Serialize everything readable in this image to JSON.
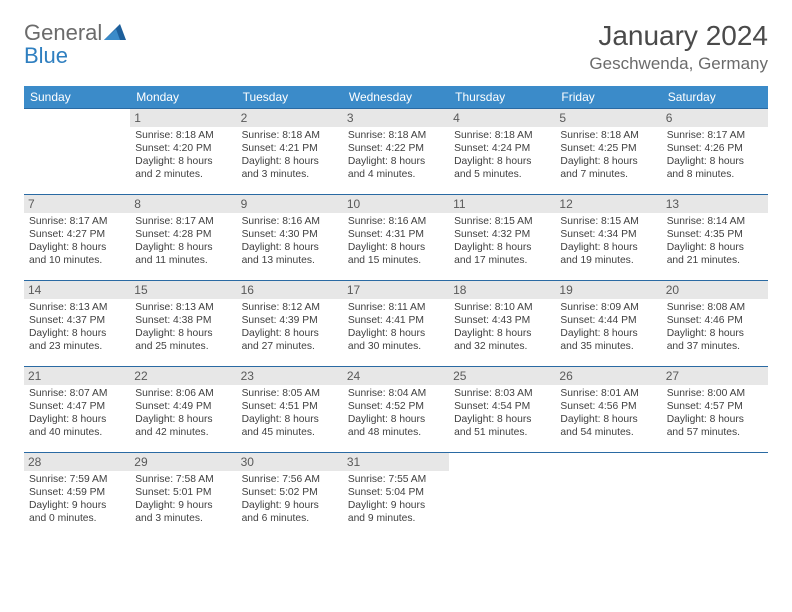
{
  "logo": {
    "general": "General",
    "blue": "Blue"
  },
  "title": "January 2024",
  "location": "Geschwenda, Germany",
  "colors": {
    "header_bg": "#3b8bc9",
    "header_text": "#ffffff",
    "rule": "#2a6aa3",
    "daynum_bg": "#e7e7e7",
    "daynum_text": "#5a5a5a",
    "body_text": "#404040",
    "title_text": "#4a4a4a",
    "location_text": "#6b6b6b",
    "logo_gray": "#6b6b6b",
    "logo_blue": "#2f7fc0"
  },
  "day_names": [
    "Sunday",
    "Monday",
    "Tuesday",
    "Wednesday",
    "Thursday",
    "Friday",
    "Saturday"
  ],
  "weeks": [
    [
      null,
      {
        "n": "1",
        "sr": "Sunrise: 8:18 AM",
        "ss": "Sunset: 4:20 PM",
        "d1": "Daylight: 8 hours",
        "d2": "and 2 minutes."
      },
      {
        "n": "2",
        "sr": "Sunrise: 8:18 AM",
        "ss": "Sunset: 4:21 PM",
        "d1": "Daylight: 8 hours",
        "d2": "and 3 minutes."
      },
      {
        "n": "3",
        "sr": "Sunrise: 8:18 AM",
        "ss": "Sunset: 4:22 PM",
        "d1": "Daylight: 8 hours",
        "d2": "and 4 minutes."
      },
      {
        "n": "4",
        "sr": "Sunrise: 8:18 AM",
        "ss": "Sunset: 4:24 PM",
        "d1": "Daylight: 8 hours",
        "d2": "and 5 minutes."
      },
      {
        "n": "5",
        "sr": "Sunrise: 8:18 AM",
        "ss": "Sunset: 4:25 PM",
        "d1": "Daylight: 8 hours",
        "d2": "and 7 minutes."
      },
      {
        "n": "6",
        "sr": "Sunrise: 8:17 AM",
        "ss": "Sunset: 4:26 PM",
        "d1": "Daylight: 8 hours",
        "d2": "and 8 minutes."
      }
    ],
    [
      {
        "n": "7",
        "sr": "Sunrise: 8:17 AM",
        "ss": "Sunset: 4:27 PM",
        "d1": "Daylight: 8 hours",
        "d2": "and 10 minutes."
      },
      {
        "n": "8",
        "sr": "Sunrise: 8:17 AM",
        "ss": "Sunset: 4:28 PM",
        "d1": "Daylight: 8 hours",
        "d2": "and 11 minutes."
      },
      {
        "n": "9",
        "sr": "Sunrise: 8:16 AM",
        "ss": "Sunset: 4:30 PM",
        "d1": "Daylight: 8 hours",
        "d2": "and 13 minutes."
      },
      {
        "n": "10",
        "sr": "Sunrise: 8:16 AM",
        "ss": "Sunset: 4:31 PM",
        "d1": "Daylight: 8 hours",
        "d2": "and 15 minutes."
      },
      {
        "n": "11",
        "sr": "Sunrise: 8:15 AM",
        "ss": "Sunset: 4:32 PM",
        "d1": "Daylight: 8 hours",
        "d2": "and 17 minutes."
      },
      {
        "n": "12",
        "sr": "Sunrise: 8:15 AM",
        "ss": "Sunset: 4:34 PM",
        "d1": "Daylight: 8 hours",
        "d2": "and 19 minutes."
      },
      {
        "n": "13",
        "sr": "Sunrise: 8:14 AM",
        "ss": "Sunset: 4:35 PM",
        "d1": "Daylight: 8 hours",
        "d2": "and 21 minutes."
      }
    ],
    [
      {
        "n": "14",
        "sr": "Sunrise: 8:13 AM",
        "ss": "Sunset: 4:37 PM",
        "d1": "Daylight: 8 hours",
        "d2": "and 23 minutes."
      },
      {
        "n": "15",
        "sr": "Sunrise: 8:13 AM",
        "ss": "Sunset: 4:38 PM",
        "d1": "Daylight: 8 hours",
        "d2": "and 25 minutes."
      },
      {
        "n": "16",
        "sr": "Sunrise: 8:12 AM",
        "ss": "Sunset: 4:39 PM",
        "d1": "Daylight: 8 hours",
        "d2": "and 27 minutes."
      },
      {
        "n": "17",
        "sr": "Sunrise: 8:11 AM",
        "ss": "Sunset: 4:41 PM",
        "d1": "Daylight: 8 hours",
        "d2": "and 30 minutes."
      },
      {
        "n": "18",
        "sr": "Sunrise: 8:10 AM",
        "ss": "Sunset: 4:43 PM",
        "d1": "Daylight: 8 hours",
        "d2": "and 32 minutes."
      },
      {
        "n": "19",
        "sr": "Sunrise: 8:09 AM",
        "ss": "Sunset: 4:44 PM",
        "d1": "Daylight: 8 hours",
        "d2": "and 35 minutes."
      },
      {
        "n": "20",
        "sr": "Sunrise: 8:08 AM",
        "ss": "Sunset: 4:46 PM",
        "d1": "Daylight: 8 hours",
        "d2": "and 37 minutes."
      }
    ],
    [
      {
        "n": "21",
        "sr": "Sunrise: 8:07 AM",
        "ss": "Sunset: 4:47 PM",
        "d1": "Daylight: 8 hours",
        "d2": "and 40 minutes."
      },
      {
        "n": "22",
        "sr": "Sunrise: 8:06 AM",
        "ss": "Sunset: 4:49 PM",
        "d1": "Daylight: 8 hours",
        "d2": "and 42 minutes."
      },
      {
        "n": "23",
        "sr": "Sunrise: 8:05 AM",
        "ss": "Sunset: 4:51 PM",
        "d1": "Daylight: 8 hours",
        "d2": "and 45 minutes."
      },
      {
        "n": "24",
        "sr": "Sunrise: 8:04 AM",
        "ss": "Sunset: 4:52 PM",
        "d1": "Daylight: 8 hours",
        "d2": "and 48 minutes."
      },
      {
        "n": "25",
        "sr": "Sunrise: 8:03 AM",
        "ss": "Sunset: 4:54 PM",
        "d1": "Daylight: 8 hours",
        "d2": "and 51 minutes."
      },
      {
        "n": "26",
        "sr": "Sunrise: 8:01 AM",
        "ss": "Sunset: 4:56 PM",
        "d1": "Daylight: 8 hours",
        "d2": "and 54 minutes."
      },
      {
        "n": "27",
        "sr": "Sunrise: 8:00 AM",
        "ss": "Sunset: 4:57 PM",
        "d1": "Daylight: 8 hours",
        "d2": "and 57 minutes."
      }
    ],
    [
      {
        "n": "28",
        "sr": "Sunrise: 7:59 AM",
        "ss": "Sunset: 4:59 PM",
        "d1": "Daylight: 9 hours",
        "d2": "and 0 minutes."
      },
      {
        "n": "29",
        "sr": "Sunrise: 7:58 AM",
        "ss": "Sunset: 5:01 PM",
        "d1": "Daylight: 9 hours",
        "d2": "and 3 minutes."
      },
      {
        "n": "30",
        "sr": "Sunrise: 7:56 AM",
        "ss": "Sunset: 5:02 PM",
        "d1": "Daylight: 9 hours",
        "d2": "and 6 minutes."
      },
      {
        "n": "31",
        "sr": "Sunrise: 7:55 AM",
        "ss": "Sunset: 5:04 PM",
        "d1": "Daylight: 9 hours",
        "d2": "and 9 minutes."
      },
      null,
      null,
      null
    ]
  ]
}
